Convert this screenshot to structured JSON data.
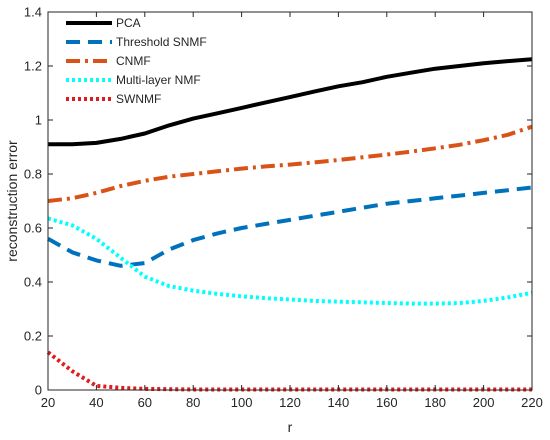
{
  "chart_data": {
    "type": "line",
    "title": "",
    "xlabel": "r",
    "ylabel": "reconstruction error",
    "xlim": [
      20,
      220
    ],
    "ylim": [
      0,
      1.4
    ],
    "xticks": [
      20,
      40,
      60,
      80,
      100,
      120,
      140,
      160,
      180,
      200,
      220
    ],
    "yticks": [
      0,
      0.2,
      0.4,
      0.6,
      0.8,
      1,
      1.2,
      1.4
    ],
    "grid": false,
    "legend_position": "top-left",
    "x": [
      20,
      30,
      40,
      50,
      60,
      70,
      80,
      90,
      100,
      110,
      120,
      130,
      140,
      150,
      160,
      170,
      180,
      190,
      200,
      210,
      220
    ],
    "series": [
      {
        "name": "PCA",
        "color": "#000000",
        "style": "solid",
        "values": [
          0.91,
          0.91,
          0.915,
          0.93,
          0.95,
          0.98,
          1.005,
          1.025,
          1.045,
          1.065,
          1.085,
          1.105,
          1.125,
          1.14,
          1.16,
          1.175,
          1.19,
          1.2,
          1.21,
          1.218,
          1.225
        ]
      },
      {
        "name": "Threshold SNMF",
        "color": "#0072BD",
        "style": "dash",
        "values": [
          0.56,
          0.51,
          0.48,
          0.46,
          0.47,
          0.52,
          0.555,
          0.58,
          0.6,
          0.615,
          0.63,
          0.645,
          0.66,
          0.675,
          0.69,
          0.7,
          0.71,
          0.72,
          0.73,
          0.74,
          0.75
        ]
      },
      {
        "name": "CNMF",
        "color": "#D95319",
        "style": "dashdot",
        "values": [
          0.7,
          0.71,
          0.73,
          0.755,
          0.775,
          0.79,
          0.8,
          0.81,
          0.82,
          0.828,
          0.835,
          0.843,
          0.852,
          0.862,
          0.872,
          0.883,
          0.895,
          0.908,
          0.925,
          0.945,
          0.975
        ]
      },
      {
        "name": "Multi-layer NMF",
        "color": "#00FFFF",
        "style": "dot",
        "values": [
          0.635,
          0.61,
          0.56,
          0.49,
          0.42,
          0.385,
          0.368,
          0.356,
          0.347,
          0.34,
          0.335,
          0.33,
          0.327,
          0.325,
          0.322,
          0.32,
          0.32,
          0.322,
          0.33,
          0.343,
          0.36
        ]
      },
      {
        "name": "SWNMF",
        "color": "#E31A1C",
        "style": "dot",
        "values": [
          0.14,
          0.07,
          0.015,
          0.008,
          0.004,
          0.003,
          0.002,
          0.002,
          0.002,
          0.002,
          0.002,
          0.002,
          0.002,
          0.002,
          0.002,
          0.002,
          0.002,
          0.002,
          0.002,
          0.002,
          0.002
        ]
      }
    ]
  }
}
